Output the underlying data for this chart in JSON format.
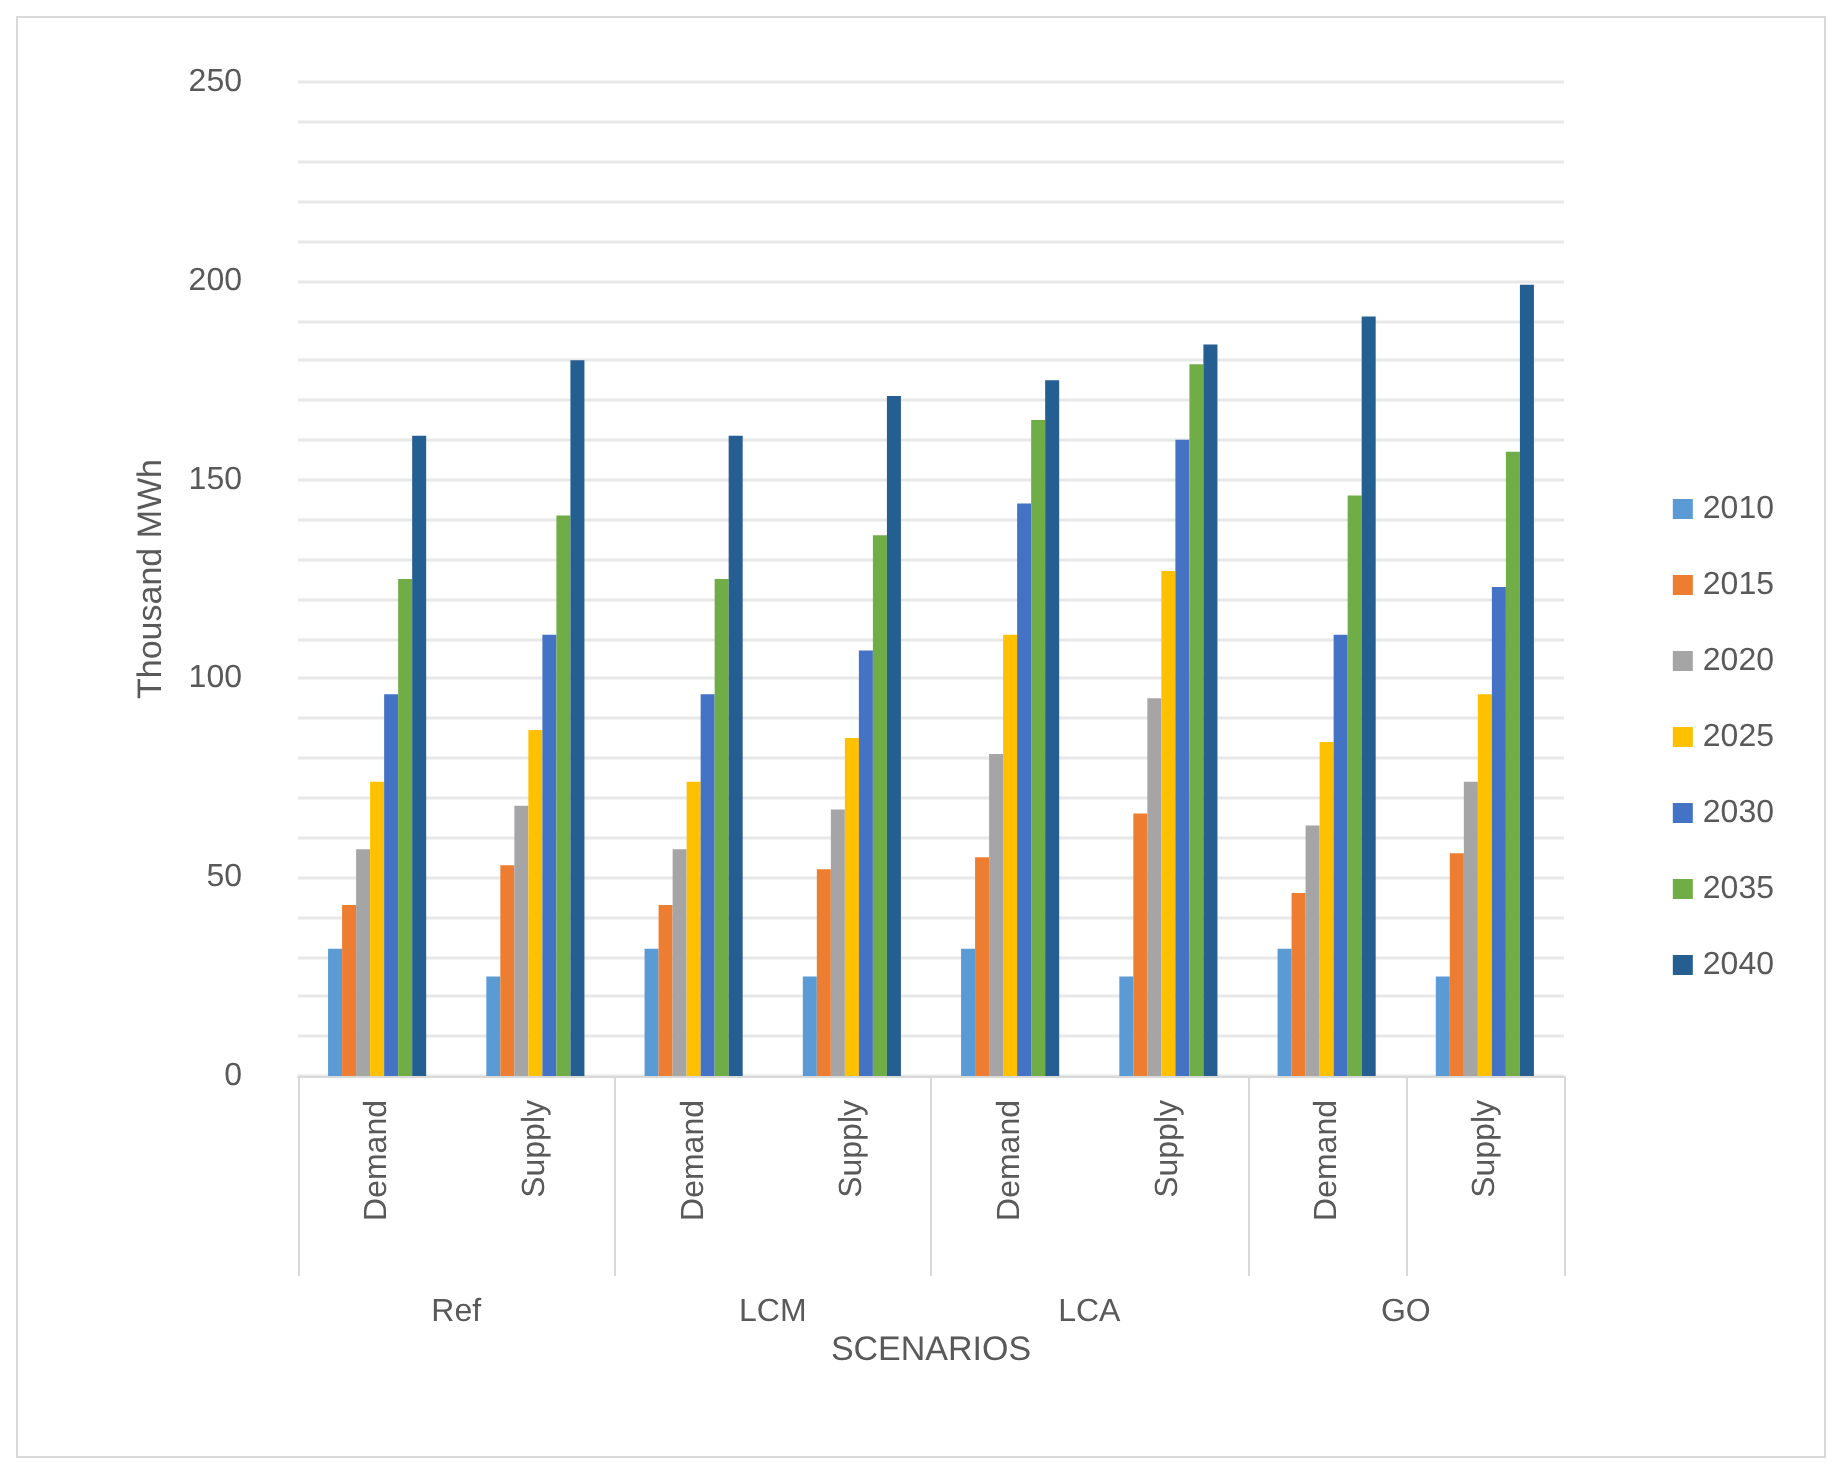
{
  "chart_data": {
    "type": "bar",
    "xlabel": "SCENARIOS",
    "ylabel": "Thousand MWh",
    "categories": [
      "Demand",
      "Supply",
      "Demand",
      "Supply",
      "Demand",
      "Supply",
      "Demand",
      "Supply"
    ],
    "annotations": [
      "Ref",
      "LCM",
      "LCA",
      "GO"
    ],
    "series": [
      {
        "name": "2010",
        "color": "#5b9bd5",
        "values": [
          32,
          25,
          32,
          25,
          32,
          25,
          32,
          25
        ]
      },
      {
        "name": "2015",
        "color": "#ed7d31",
        "values": [
          43,
          53,
          43,
          52,
          55,
          66,
          46,
          56
        ]
      },
      {
        "name": "2020",
        "color": "#a5a5a5",
        "values": [
          57,
          68,
          57,
          67,
          81,
          95,
          63,
          74
        ]
      },
      {
        "name": "2025",
        "color": "#ffc000",
        "values": [
          74,
          87,
          74,
          85,
          111,
          127,
          84,
          96
        ]
      },
      {
        "name": "2030",
        "color": "#4472c4",
        "values": [
          96,
          111,
          96,
          107,
          144,
          160,
          111,
          123
        ]
      },
      {
        "name": "2035",
        "color": "#70ad47",
        "values": [
          125,
          141,
          125,
          136,
          165,
          179,
          146,
          157
        ]
      },
      {
        "name": "2040",
        "color": "#255e91",
        "values": [
          161,
          180,
          161,
          171,
          175,
          184,
          191,
          199
        ]
      }
    ],
    "ylim": [
      0,
      250
    ],
    "yticks": [
      0,
      {
        "value": 10,
        "label": null
      },
      {
        "value": 20,
        "label": null
      },
      {
        "value": 30,
        "label": null
      },
      {
        "value": 40,
        "label": null
      },
      50,
      {
        "value": 60,
        "label": null
      },
      {
        "value": 70,
        "label": null
      },
      {
        "value": 80,
        "label": null
      },
      {
        "value": 90,
        "label": null
      },
      100,
      {
        "value": 110,
        "label": null
      },
      {
        "value": 120,
        "label": null
      },
      {
        "value": 130,
        "label": null
      },
      {
        "value": 140,
        "label": null
      },
      150,
      {
        "value": 160,
        "label": null
      },
      {
        "value": 170,
        "label": null
      },
      {
        "value": 180,
        "label": null
      },
      {
        "value": 190,
        "label": null
      },
      200,
      {
        "value": 210,
        "label": null
      },
      {
        "value": 220,
        "label": null
      },
      {
        "value": 230,
        "label": null
      },
      {
        "value": 240,
        "label": null
      },
      250
    ],
    "grid": true,
    "legend": "right"
  }
}
